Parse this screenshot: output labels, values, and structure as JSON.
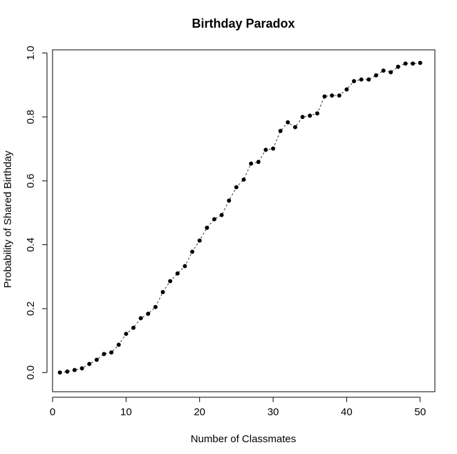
{
  "chart_data": {
    "type": "scatter",
    "title": "Birthday Paradox",
    "xlabel": "Number of Classmates",
    "ylabel": "Probability of Shared Birthday",
    "xlim": [
      0,
      52
    ],
    "ylim": [
      -0.06,
      1.01
    ],
    "x_ticks": [
      0,
      10,
      20,
      30,
      40,
      50
    ],
    "x_tick_labels": [
      "0",
      "10",
      "20",
      "30",
      "40",
      "50"
    ],
    "y_ticks": [
      0.0,
      0.2,
      0.4,
      0.6,
      0.8,
      1.0
    ],
    "y_tick_labels": [
      "0.0",
      "0.2",
      "0.4",
      "0.6",
      "0.8",
      "1.0"
    ],
    "grid": false,
    "legend": false,
    "point_color": "#000000",
    "line_style": "dashed",
    "x": [
      1,
      2,
      3,
      4,
      5,
      6,
      7,
      8,
      9,
      10,
      11,
      12,
      13,
      14,
      15,
      16,
      17,
      18,
      19,
      20,
      21,
      22,
      23,
      24,
      25,
      26,
      27,
      28,
      29,
      30,
      31,
      32,
      33,
      34,
      35,
      36,
      37,
      38,
      39,
      40,
      41,
      42,
      43,
      44,
      45,
      46,
      47,
      48,
      49,
      50
    ],
    "y": [
      0.0,
      0.003,
      0.008,
      0.013,
      0.027,
      0.04,
      0.058,
      0.063,
      0.087,
      0.121,
      0.14,
      0.17,
      0.184,
      0.205,
      0.252,
      0.286,
      0.31,
      0.333,
      0.378,
      0.413,
      0.453,
      0.48,
      0.493,
      0.538,
      0.58,
      0.604,
      0.654,
      0.659,
      0.697,
      0.701,
      0.756,
      0.783,
      0.768,
      0.8,
      0.804,
      0.811,
      0.864,
      0.867,
      0.867,
      0.886,
      0.912,
      0.917,
      0.917,
      0.93,
      0.945,
      0.94,
      0.957,
      0.967,
      0.967,
      0.969
    ]
  }
}
